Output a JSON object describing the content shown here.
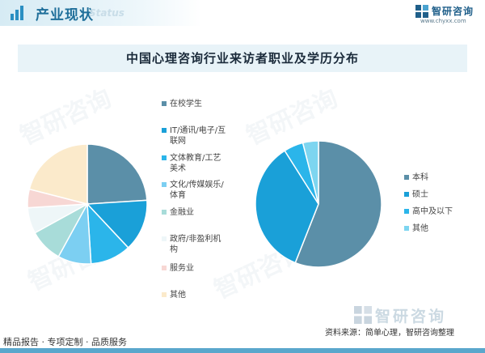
{
  "header": {
    "title": "产业现状",
    "subtitle": "Status"
  },
  "brand": {
    "name": "智研咨询",
    "url": "www.chyxx.com"
  },
  "colors": {
    "accent": "#1f6f9a",
    "pie_left": [
      "#5b8fa8",
      "#1aa0d8",
      "#2bb5ea",
      "#7ccff2",
      "#a8dcd9",
      "#eef6f8",
      "#f7d7d4",
      "#fbeacb"
    ],
    "pie_right": [
      "#5b8fa8",
      "#1aa0d8",
      "#2bb5ea",
      "#7dd5f0"
    ]
  },
  "chart_data": [
    {
      "type": "pie",
      "title": "中国心理咨询行业来访者职业及学历分布",
      "categories": [
        "在校学生",
        "IT/通讯/电子/互联网",
        "文体教育/工艺美术",
        "文化/传媒娱乐/体育",
        "金融业",
        "政府/非盈利机构",
        "服务业",
        "其他"
      ],
      "values": [
        24,
        14,
        11,
        9,
        9,
        7,
        5,
        21
      ],
      "legend_position": "right"
    },
    {
      "type": "pie",
      "categories": [
        "本科",
        "硕士",
        "高中及以下",
        "其他"
      ],
      "values": [
        56,
        35,
        5,
        4
      ],
      "legend_position": "right"
    }
  ],
  "legend_left": [
    "在校学生",
    "IT/通讯/电子/互\n联网",
    "文体教育/工艺\n美术",
    "文化/传媒娱乐/\n体育",
    "金融业",
    "政府/非盈利机\n构",
    "服务业",
    "其他"
  ],
  "footer": {
    "left": "精品报告 · 专项定制 · 品质服务",
    "source": "资料来源：简单心理，智研咨询整理"
  }
}
